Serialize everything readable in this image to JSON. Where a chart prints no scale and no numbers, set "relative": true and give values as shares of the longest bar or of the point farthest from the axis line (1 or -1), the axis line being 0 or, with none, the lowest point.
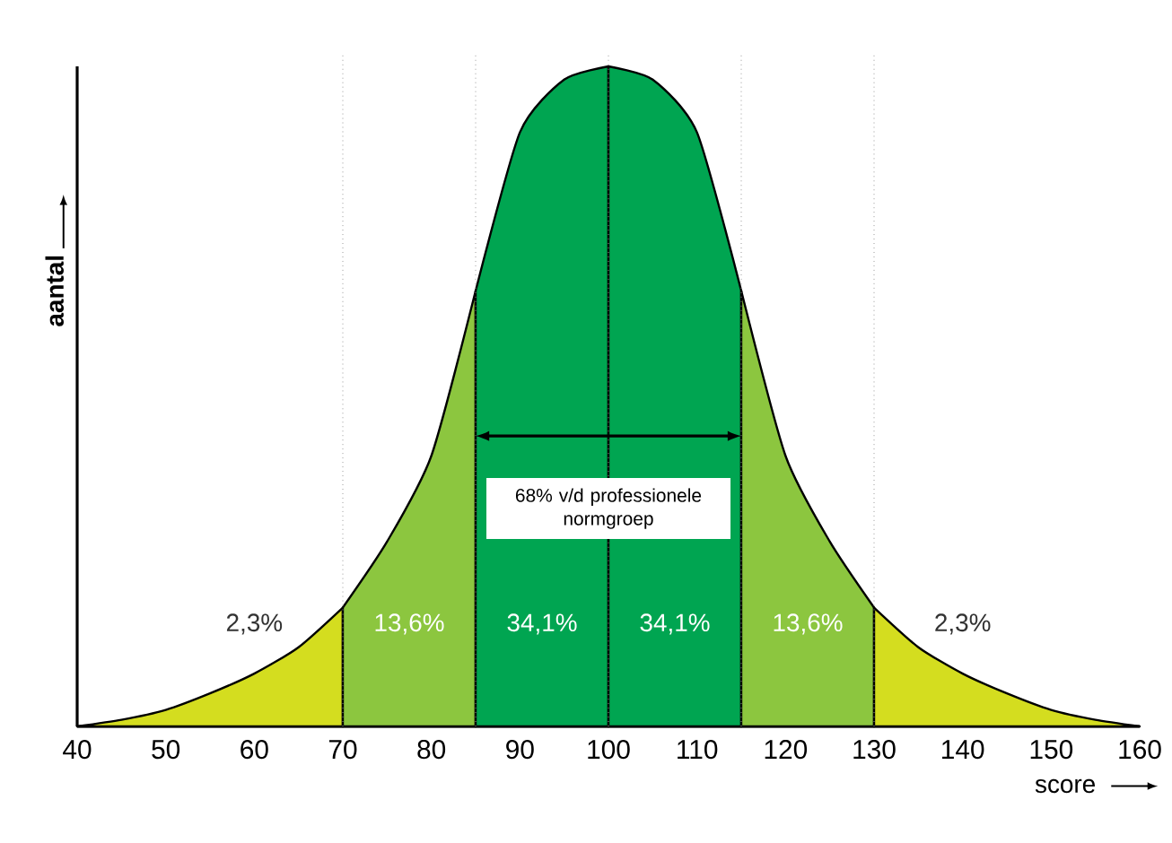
{
  "chart_data": {
    "type": "area",
    "relative": true,
    "xlabel": "score",
    "ylabel": "aantal",
    "xlim": [
      40,
      160
    ],
    "xticks": [
      40,
      50,
      60,
      70,
      80,
      90,
      100,
      110,
      120,
      130,
      140,
      150,
      160
    ],
    "series": [
      {
        "color": "#d4dd1f",
        "x": [
          40,
          45,
          50,
          55,
          60,
          65,
          70
        ],
        "values": [
          0,
          0.01,
          0.025,
          0.05,
          0.08,
          0.12,
          0.18
        ]
      },
      {
        "color": "#8cc63f",
        "x": [
          70,
          75,
          80,
          85
        ],
        "values": [
          0.18,
          0.28,
          0.41,
          0.66
        ]
      },
      {
        "color": "#00a551",
        "x": [
          85,
          90,
          95,
          100
        ],
        "values": [
          0.66,
          0.9,
          0.98,
          1
        ]
      },
      {
        "color": "#00a551",
        "x": [
          100,
          105,
          110,
          115
        ],
        "values": [
          1,
          0.98,
          0.9,
          0.66
        ]
      },
      {
        "color": "#8cc63f",
        "x": [
          115,
          120,
          125,
          130
        ],
        "values": [
          0.66,
          0.41,
          0.28,
          0.18
        ]
      },
      {
        "color": "#d4dd1f",
        "x": [
          130,
          135,
          140,
          145,
          150,
          155,
          160
        ],
        "values": [
          0.18,
          0.12,
          0.08,
          0.05,
          0.025,
          0.01,
          0
        ]
      }
    ],
    "ref_lines": [
      {
        "axis": "x",
        "value": 70,
        "color": "#9a9a9a",
        "line_style": "dotted"
      },
      {
        "axis": "x",
        "value": 85,
        "color": "#9a9a9a",
        "line_style": "dotted"
      },
      {
        "axis": "x",
        "value": 100,
        "color": "#9a9a9a",
        "line_style": "dotted"
      },
      {
        "axis": "x",
        "value": 115,
        "color": "#9a9a9a",
        "line_style": "dotted"
      },
      {
        "axis": "x",
        "value": 130,
        "color": "#9a9a9a",
        "line_style": "dotted"
      }
    ],
    "annotations": [
      "2,3%",
      "13,6%",
      "34,1%",
      "34,1%",
      "13,6%",
      "2,3%",
      "68% v/d professionele normgroep"
    ]
  }
}
